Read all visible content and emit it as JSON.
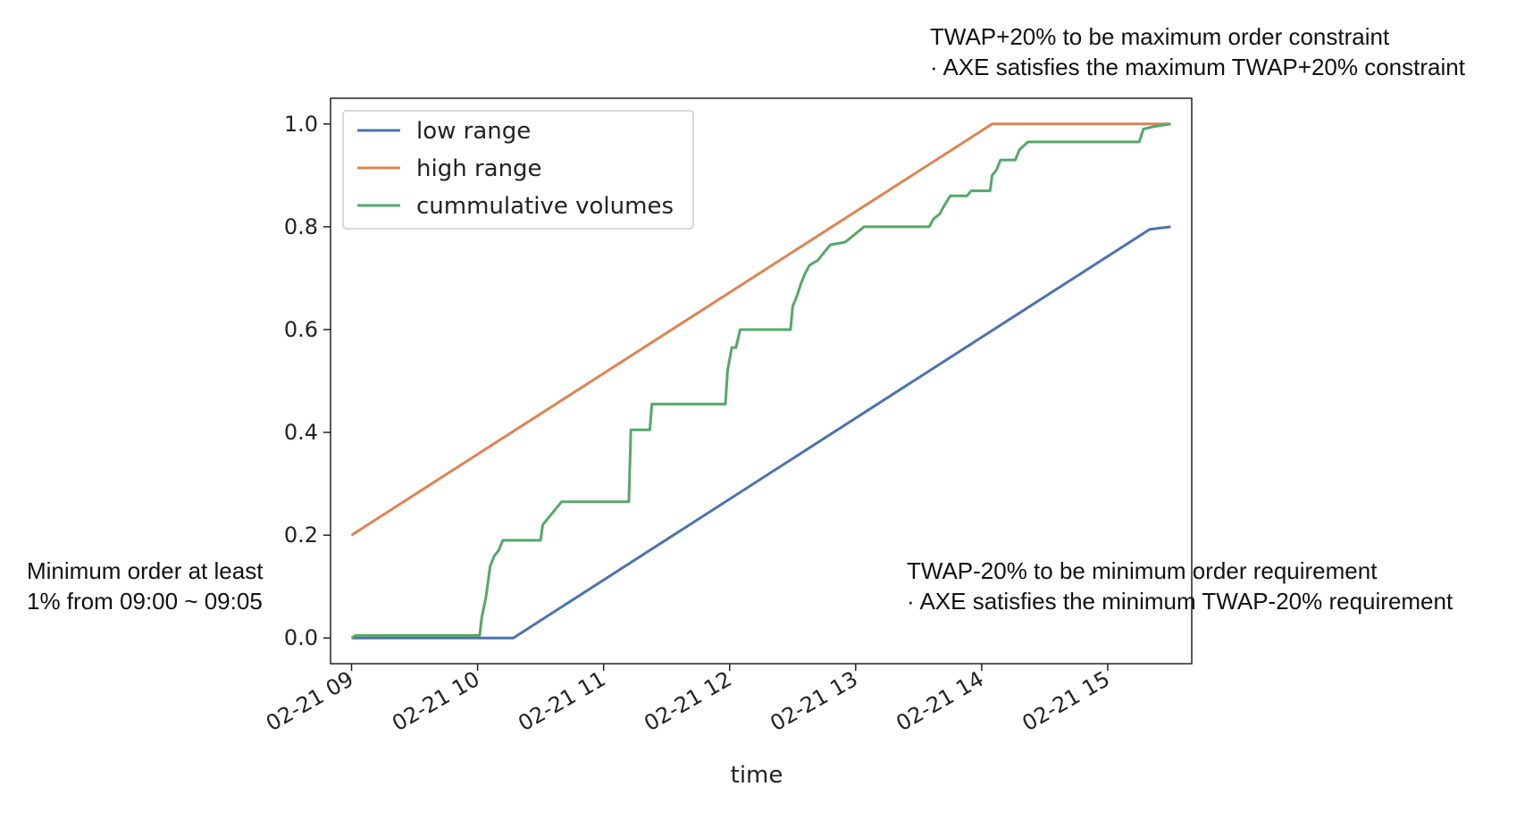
{
  "annotations": {
    "top": {
      "line1": "TWAP+20% to be maximum order constraint",
      "line2": "· AXE satisfies the maximum TWAP+20% constraint"
    },
    "left": {
      "line1": "Minimum order at least",
      "line2": "1% from 09:00 ~ 09:05"
    },
    "right": {
      "line1": "TWAP-20% to be minimum order requirement",
      "line2": "· AXE satisfies the minimum TWAP-20% requirement"
    }
  },
  "chart_data": {
    "type": "line",
    "title": "",
    "xlabel": "time",
    "ylabel": "",
    "x_ticks": [
      "02-21 09",
      "02-21 10",
      "02-21 11",
      "02-21 12",
      "02-21 13",
      "02-21 14",
      "02-21 15"
    ],
    "y_ticks": [
      "0.0",
      "0.2",
      "0.4",
      "0.6",
      "0.8",
      "1.0"
    ],
    "xlim": [
      "02-21 08:50",
      "02-21 15:40"
    ],
    "ylim": [
      -0.05,
      1.05
    ],
    "grid": false,
    "legend_position": "upper-left",
    "series": [
      {
        "name": "low range",
        "color": "#4c72b0",
        "points": [
          {
            "x": "09:00",
            "y": 0.0
          },
          {
            "x": "10:17",
            "y": 0.0
          },
          {
            "x": "15:20",
            "y": 0.795
          },
          {
            "x": "15:30",
            "y": 0.8
          }
        ]
      },
      {
        "name": "high range",
        "color": "#dd8452",
        "points": [
          {
            "x": "09:00",
            "y": 0.2
          },
          {
            "x": "14:05",
            "y": 1.0
          },
          {
            "x": "15:30",
            "y": 1.0
          }
        ]
      },
      {
        "name": "cummulative volumes",
        "color": "#55a868",
        "points": [
          {
            "x": "09:00",
            "y": 0.0
          },
          {
            "x": "09:02",
            "y": 0.005
          },
          {
            "x": "10:01",
            "y": 0.005
          },
          {
            "x": "10:02",
            "y": 0.04
          },
          {
            "x": "10:04",
            "y": 0.08
          },
          {
            "x": "10:06",
            "y": 0.14
          },
          {
            "x": "10:08",
            "y": 0.16
          },
          {
            "x": "10:10",
            "y": 0.17
          },
          {
            "x": "10:12",
            "y": 0.19
          },
          {
            "x": "10:30",
            "y": 0.19
          },
          {
            "x": "10:31",
            "y": 0.22
          },
          {
            "x": "10:35",
            "y": 0.24
          },
          {
            "x": "10:40",
            "y": 0.265
          },
          {
            "x": "11:12",
            "y": 0.265
          },
          {
            "x": "11:13",
            "y": 0.405
          },
          {
            "x": "11:22",
            "y": 0.405
          },
          {
            "x": "11:23",
            "y": 0.455
          },
          {
            "x": "11:58",
            "y": 0.455
          },
          {
            "x": "11:59",
            "y": 0.52
          },
          {
            "x": "12:01",
            "y": 0.565
          },
          {
            "x": "12:03",
            "y": 0.565
          },
          {
            "x": "12:05",
            "y": 0.6
          },
          {
            "x": "12:29",
            "y": 0.6
          },
          {
            "x": "12:30",
            "y": 0.645
          },
          {
            "x": "12:32",
            "y": 0.665
          },
          {
            "x": "12:34",
            "y": 0.69
          },
          {
            "x": "12:36",
            "y": 0.71
          },
          {
            "x": "12:38",
            "y": 0.725
          },
          {
            "x": "12:42",
            "y": 0.735
          },
          {
            "x": "12:45",
            "y": 0.75
          },
          {
            "x": "12:48",
            "y": 0.765
          },
          {
            "x": "12:55",
            "y": 0.77
          },
          {
            "x": "12:58",
            "y": 0.78
          },
          {
            "x": "13:01",
            "y": 0.79
          },
          {
            "x": "13:04",
            "y": 0.8
          },
          {
            "x": "13:35",
            "y": 0.8
          },
          {
            "x": "13:37",
            "y": 0.815
          },
          {
            "x": "13:40",
            "y": 0.825
          },
          {
            "x": "13:42",
            "y": 0.84
          },
          {
            "x": "13:45",
            "y": 0.86
          },
          {
            "x": "13:53",
            "y": 0.86
          },
          {
            "x": "13:55",
            "y": 0.87
          },
          {
            "x": "14:04",
            "y": 0.87
          },
          {
            "x": "14:05",
            "y": 0.9
          },
          {
            "x": "14:07",
            "y": 0.91
          },
          {
            "x": "14:09",
            "y": 0.93
          },
          {
            "x": "14:16",
            "y": 0.93
          },
          {
            "x": "14:18",
            "y": 0.95
          },
          {
            "x": "14:22",
            "y": 0.965
          },
          {
            "x": "15:15",
            "y": 0.965
          },
          {
            "x": "15:17",
            "y": 0.99
          },
          {
            "x": "15:22",
            "y": 0.995
          },
          {
            "x": "15:30",
            "y": 1.0
          }
        ]
      }
    ]
  }
}
